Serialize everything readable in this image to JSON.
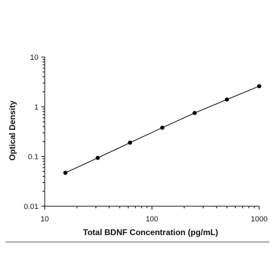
{
  "chart_data": {
    "type": "scatter",
    "title": "",
    "xlabel": "Total BDNF Concentration (pg/mL)",
    "ylabel": "Optical Density",
    "x_scale": "log",
    "y_scale": "log",
    "xlim": [
      10,
      1000
    ],
    "ylim": [
      0.01,
      10
    ],
    "x_ticks": [
      {
        "value": 10,
        "label": "10"
      },
      {
        "value": 100,
        "label": "100"
      },
      {
        "value": 1000,
        "label": "1000"
      }
    ],
    "y_ticks": [
      {
        "value": 0.01,
        "label": "0.01"
      },
      {
        "value": 0.1,
        "label": "0.1"
      },
      {
        "value": 1,
        "label": "1"
      },
      {
        "value": 10,
        "label": "10"
      }
    ],
    "grid": false,
    "legend": false,
    "series": [
      {
        "x": [
          15.6,
          31.25,
          62.5,
          125,
          250,
          500,
          1000
        ],
        "y": [
          0.047,
          0.094,
          0.19,
          0.38,
          0.75,
          1.4,
          2.6
        ]
      }
    ],
    "fit_line": true,
    "colors": {
      "marker": "#000000",
      "line": "#000000",
      "axis": "#000000",
      "separator": "#555555"
    }
  }
}
